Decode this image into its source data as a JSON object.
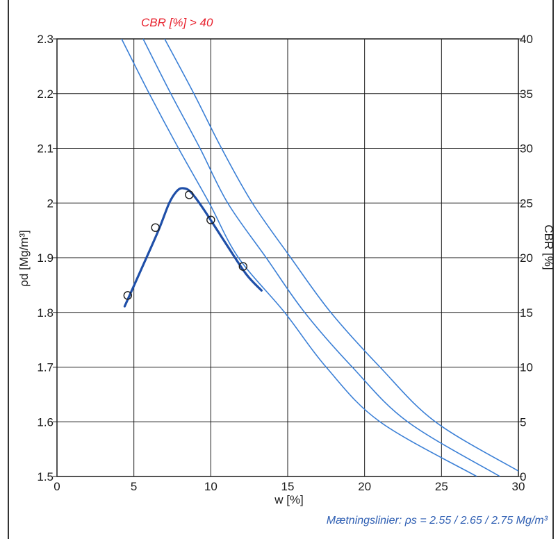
{
  "chart_data": {
    "type": "line",
    "title": "",
    "xlabel": "w [%]",
    "ylabel_left": "ρd [Mg/m³]",
    "ylabel_right": "CBR [%]",
    "annotation_top": "CBR [%] > 40",
    "annotation_bottom": "Mætningslinier: ρs = 2.55 / 2.65 / 2.75 Mg/m³",
    "xlim": [
      0,
      30
    ],
    "ylim_left": [
      1.5,
      2.3
    ],
    "ylim_right": [
      0,
      40
    ],
    "grid": true,
    "x_ticks": [
      "0",
      "5",
      "10",
      "15",
      "20",
      "25",
      "30"
    ],
    "y_left_ticks": [
      "1.5",
      "1.6",
      "1.7",
      "1.8",
      "1.9",
      "2",
      "2.1",
      "2.2",
      "2.3"
    ],
    "y_right_ticks": [
      "0",
      "5",
      "10",
      "15",
      "20",
      "25",
      "30",
      "35",
      "40"
    ],
    "measured_points": [
      {
        "w": 4.6,
        "rho_d": 1.831
      },
      {
        "w": 6.4,
        "rho_d": 1.955
      },
      {
        "w": 8.6,
        "rho_d": 2.015
      },
      {
        "w": 10.0,
        "rho_d": 1.969
      },
      {
        "w": 12.1,
        "rho_d": 1.884
      }
    ],
    "compaction_curve": [
      {
        "w": 4.4,
        "rho_d": 1.811
      },
      {
        "w": 5.5,
        "rho_d": 1.88
      },
      {
        "w": 6.6,
        "rho_d": 1.95
      },
      {
        "w": 7.3,
        "rho_d": 2.0
      },
      {
        "w": 7.8,
        "rho_d": 2.022
      },
      {
        "w": 8.2,
        "rho_d": 2.027
      },
      {
        "w": 8.7,
        "rho_d": 2.02
      },
      {
        "w": 9.5,
        "rho_d": 1.99
      },
      {
        "w": 11.0,
        "rho_d": 1.925
      },
      {
        "w": 12.3,
        "rho_d": 1.87
      },
      {
        "w": 13.3,
        "rho_d": 1.84
      }
    ],
    "saturation_lines": [
      {
        "rho_s": 2.55,
        "points": [
          {
            "w": 4.2,
            "rho_d": 2.3
          },
          {
            "w": 6.0,
            "rho_d": 2.2
          },
          {
            "w": 7.9,
            "rho_d": 2.1
          },
          {
            "w": 9.9,
            "rho_d": 2.0
          },
          {
            "w": 11.8,
            "rho_d": 1.9
          },
          {
            "w": 14.8,
            "rho_d": 1.8
          },
          {
            "w": 17.5,
            "rho_d": 1.7
          },
          {
            "w": 21.0,
            "rho_d": 1.6
          },
          {
            "w": 27.3,
            "rho_d": 1.5
          }
        ]
      },
      {
        "rho_s": 2.65,
        "points": [
          {
            "w": 5.6,
            "rho_d": 2.3
          },
          {
            "w": 7.4,
            "rho_d": 2.2
          },
          {
            "w": 9.3,
            "rho_d": 2.1
          },
          {
            "w": 11.1,
            "rho_d": 2.0
          },
          {
            "w": 13.6,
            "rho_d": 1.9
          },
          {
            "w": 16.1,
            "rho_d": 1.8
          },
          {
            "w": 19.2,
            "rho_d": 1.7
          },
          {
            "w": 22.8,
            "rho_d": 1.6
          },
          {
            "w": 28.8,
            "rho_d": 1.5
          }
        ]
      },
      {
        "rho_s": 2.75,
        "points": [
          {
            "w": 7.0,
            "rho_d": 2.3
          },
          {
            "w": 8.9,
            "rho_d": 2.2
          },
          {
            "w": 10.7,
            "rho_d": 2.1
          },
          {
            "w": 12.7,
            "rho_d": 2.0
          },
          {
            "w": 15.2,
            "rho_d": 1.9
          },
          {
            "w": 17.8,
            "rho_d": 1.8
          },
          {
            "w": 21.0,
            "rho_d": 1.7
          },
          {
            "w": 24.6,
            "rho_d": 1.6
          },
          {
            "w": 30.0,
            "rho_d": 1.51
          }
        ]
      }
    ],
    "colors": {
      "compaction_curve": "#1f4fa8",
      "saturation_lines": "#3a7fd6",
      "points": "#1a1a1a",
      "grid": "#1a1a1a",
      "annotation_top": "#e8212d",
      "annotation_bottom": "#2f5fb3"
    }
  }
}
